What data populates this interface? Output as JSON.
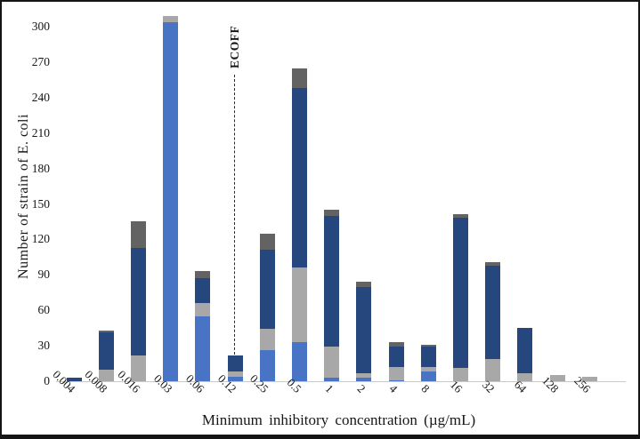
{
  "chart_data": {
    "type": "bar",
    "stacked": true,
    "xlabel": "Minimum inhibitory concentration (µg/mL)",
    "ylabel": "Number of strain of E. coli",
    "categories": [
      "0.004",
      "0.008",
      "0.016",
      "0.03",
      "0.06",
      "0.12",
      "0.25",
      "0.5",
      "1",
      "2",
      "4",
      "8",
      "16",
      "32",
      "64",
      "128",
      "256"
    ],
    "series": [
      {
        "name": "series-1-medium-blue",
        "color": "#4973c4",
        "values": [
          0,
          0,
          0,
          304,
          55,
          4,
          26,
          33,
          3,
          3,
          1,
          8,
          0,
          0,
          0,
          0,
          0
        ]
      },
      {
        "name": "series-2-gray",
        "color": "#a8a8a8",
        "values": [
          0,
          10,
          22,
          5,
          11,
          4,
          18,
          63,
          26,
          4,
          11,
          4,
          11,
          19,
          7,
          5,
          4
        ]
      },
      {
        "name": "series-3-dark-blue",
        "color": "#25477e",
        "values": [
          3,
          31,
          91,
          0,
          21,
          14,
          67,
          152,
          111,
          73,
          17,
          17,
          127,
          79,
          38,
          0,
          0
        ]
      },
      {
        "name": "series-4-dark-gray",
        "color": "#636363",
        "values": [
          0,
          2,
          22,
          0,
          6,
          0,
          14,
          17,
          5,
          4,
          4,
          2,
          3,
          3,
          0,
          0,
          0
        ]
      }
    ],
    "totals": [
      3,
      43,
      135,
      309,
      93,
      22,
      125,
      265,
      145,
      84,
      33,
      31,
      141,
      101,
      45,
      5,
      4
    ],
    "ylim": [
      0,
      300
    ],
    "yticks": [
      0,
      30,
      60,
      90,
      120,
      150,
      180,
      210,
      240,
      270,
      300
    ],
    "grid": false,
    "legend": "none",
    "annotation": {
      "label": "ECOFF",
      "x_category": "0.12"
    }
  }
}
